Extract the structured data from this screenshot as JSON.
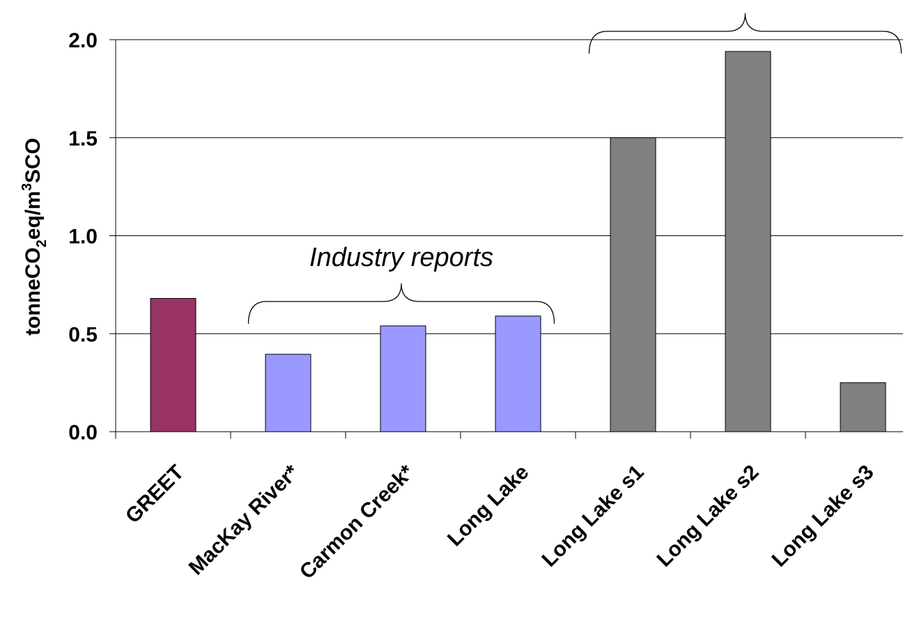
{
  "chart_data": {
    "type": "bar",
    "categories": [
      "GREET",
      "MacKay River*",
      "Carmon Creek*",
      "Long Lake",
      "Long Lake s1",
      "Long Lake s2",
      "Long Lake s3"
    ],
    "values": [
      0.68,
      0.395,
      0.54,
      0.59,
      1.5,
      1.94,
      0.25
    ],
    "bar_colors": [
      "#993366",
      "#9999ff",
      "#9999ff",
      "#9999ff",
      "#808080",
      "#808080",
      "#808080"
    ],
    "ylim": [
      0.0,
      2.0
    ],
    "yticks": [
      0.0,
      0.5,
      1.0,
      1.5,
      2.0
    ],
    "ytick_labels": [
      "0.0",
      "0.5",
      "1.0",
      "1.5",
      "2.0"
    ],
    "ylabel": {
      "prefix": "tonneCO",
      "sub": "2",
      "middle": "eq/m",
      "sup": "3",
      "suffix": "SCO"
    },
    "xlabel": "",
    "title": "",
    "grid": "horizontal",
    "legend": "none",
    "annotations": [
      {
        "text": "Industry reports",
        "brace_from": "MacKay River*",
        "brace_to": "Long Lake"
      },
      {
        "text": "",
        "brace_from": "Long Lake s1",
        "brace_to": "Long Lake s3"
      }
    ]
  }
}
